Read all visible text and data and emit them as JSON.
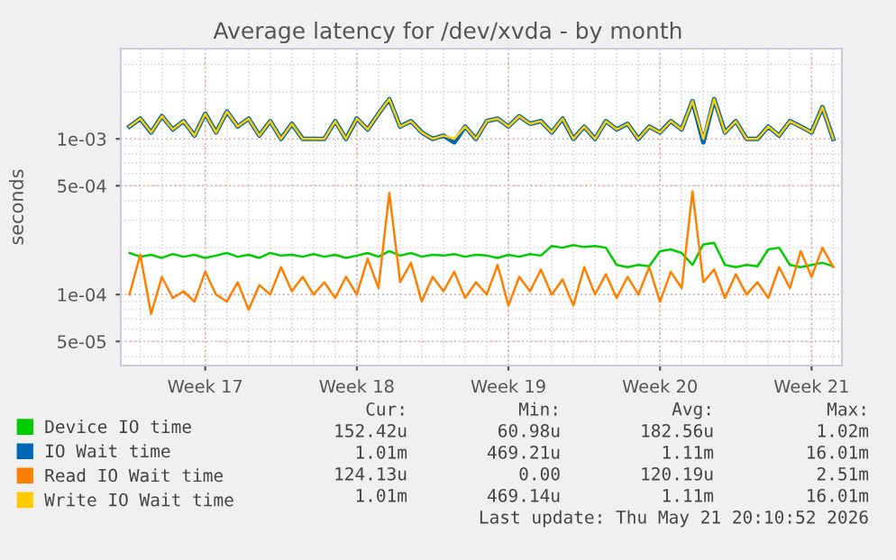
{
  "chart_data": {
    "type": "line",
    "title": "Average latency for /dev/xvda - by month",
    "ylabel": "seconds",
    "categories": [
      null,
      null,
      null,
      null,
      null,
      null,
      null,
      "Week 17",
      null,
      null,
      null,
      null,
      null,
      null,
      null,
      null,
      null,
      null,
      null,
      null,
      null,
      "Week 18",
      null,
      null,
      null,
      null,
      null,
      null,
      null,
      null,
      null,
      null,
      null,
      null,
      null,
      "Week 19",
      null,
      null,
      null,
      null,
      null,
      null,
      null,
      null,
      null,
      null,
      null,
      null,
      null,
      "Week 20",
      null,
      null,
      null,
      null,
      null,
      null,
      null,
      null,
      null,
      null,
      null,
      null,
      null,
      "Week 21",
      null,
      null
    ],
    "series": [
      {
        "name": "Device IO time",
        "color": "#00cc00",
        "values": [
          0.000185,
          0.000175,
          0.00018,
          0.000172,
          0.000182,
          0.000175,
          0.00018,
          0.000172,
          0.000178,
          0.000185,
          0.000175,
          0.00018,
          0.000172,
          0.000185,
          0.000178,
          0.00018,
          0.000175,
          0.000182,
          0.000175,
          0.00018,
          0.000172,
          0.000178,
          0.000185,
          0.000175,
          0.00019,
          0.000178,
          0.000185,
          0.000175,
          0.00018,
          0.000178,
          0.000182,
          0.000175,
          0.00018,
          0.000178,
          0.000172,
          0.00018,
          0.000175,
          0.000182,
          0.000178,
          0.000205,
          0.0002,
          0.000208,
          0.000202,
          0.000205,
          0.0002,
          0.000155,
          0.00015,
          0.000155,
          0.000152,
          0.00019,
          0.000195,
          0.000185,
          0.000155,
          0.00021,
          0.000215,
          0.000155,
          0.00015,
          0.000155,
          0.000152,
          0.000195,
          0.0002,
          0.000155,
          0.00015,
          0.000155,
          0.00016,
          0.000152
        ]
      },
      {
        "name": "IO Wait time",
        "color": "#0066b3",
        "values": [
          0.0012,
          0.00135,
          0.0011,
          0.0014,
          0.00115,
          0.0013,
          0.00105,
          0.00145,
          0.0011,
          0.0015,
          0.0012,
          0.00135,
          0.00105,
          0.0013,
          0.001,
          0.00125,
          0.001,
          0.001,
          0.001,
          0.0013,
          0.001,
          0.00135,
          0.00115,
          0.00145,
          0.0018,
          0.0012,
          0.0013,
          0.0011,
          0.001,
          0.00105,
          0.00095,
          0.0012,
          0.001,
          0.0013,
          0.00135,
          0.0012,
          0.0014,
          0.00125,
          0.0013,
          0.0011,
          0.00135,
          0.001,
          0.0012,
          0.001,
          0.0013,
          0.00115,
          0.00125,
          0.001,
          0.0012,
          0.0011,
          0.0013,
          0.00115,
          0.00175,
          0.00095,
          0.0018,
          0.0011,
          0.0013,
          0.001,
          0.001,
          0.0012,
          0.00105,
          0.0013,
          0.0012,
          0.0011,
          0.0016,
          0.001
        ]
      },
      {
        "name": "Read IO Wait time",
        "color": "#ff8000",
        "values": [
          0.0001,
          0.00018,
          7.5e-05,
          0.00013,
          9.5e-05,
          0.000105,
          9e-05,
          0.00014,
          0.0001,
          9e-05,
          0.00012,
          8e-05,
          0.000115,
          0.0001,
          0.00015,
          0.000105,
          0.00013,
          0.0001,
          0.00012,
          9.5e-05,
          0.00013,
          0.0001,
          0.00017,
          0.00011,
          0.00045,
          0.00012,
          0.00016,
          9e-05,
          0.00013,
          0.000105,
          0.00014,
          9.5e-05,
          0.00012,
          0.0001,
          0.000155,
          8.5e-05,
          0.00013,
          0.000105,
          0.000145,
          0.0001,
          0.000125,
          8.5e-05,
          0.00015,
          0.0001,
          0.000135,
          9.5e-05,
          0.00013,
          0.0001,
          0.00015,
          9e-05,
          0.00014,
          0.00011,
          0.00046,
          0.00012,
          0.000145,
          9.5e-05,
          0.000135,
          0.0001,
          0.00012,
          9.5e-05,
          0.00015,
          0.00011,
          0.00019,
          0.00013,
          0.0002,
          0.00015
        ]
      },
      {
        "name": "Write IO Wait time",
        "color": "#ffcc00",
        "values": [
          0.0012,
          0.00135,
          0.0011,
          0.0014,
          0.00115,
          0.0013,
          0.00105,
          0.00145,
          0.0011,
          0.0015,
          0.0012,
          0.00135,
          0.00105,
          0.0013,
          0.001,
          0.00125,
          0.001,
          0.001,
          0.001,
          0.0013,
          0.001,
          0.00135,
          0.00115,
          0.00145,
          0.0018,
          0.0012,
          0.0013,
          0.0011,
          0.001,
          0.00105,
          0.001,
          0.0012,
          0.001,
          0.0013,
          0.00135,
          0.0012,
          0.0014,
          0.00125,
          0.0013,
          0.0011,
          0.00135,
          0.001,
          0.0012,
          0.001,
          0.0013,
          0.00115,
          0.00125,
          0.001,
          0.0012,
          0.0011,
          0.0013,
          0.00115,
          0.00175,
          0.001,
          0.0018,
          0.0011,
          0.0013,
          0.001,
          0.001,
          0.0012,
          0.00105,
          0.0013,
          0.0012,
          0.0011,
          0.0016,
          0.001
        ]
      }
    ],
    "log": "y",
    "ylim": [
      3.5e-05,
      0.0038
    ],
    "yticks": [
      {
        "value": 5e-05,
        "label": "5e-05"
      },
      {
        "value": 0.0001,
        "label": "1e-04"
      },
      {
        "value": 0.0005,
        "label": "5e-04"
      },
      {
        "value": 0.001,
        "label": "1e-03"
      }
    ],
    "grid": true,
    "legend": "bottom",
    "marker": "none",
    "line_style": "solid",
    "annotations": [
      "Cur:",
      "Min:",
      "Avg:",
      "Max:",
      "152.42u",
      "60.98u",
      "182.56u",
      "1.02m",
      "1.01m",
      "469.21u",
      "1.11m",
      "16.01m",
      "124.13u",
      "0.00",
      "120.19u",
      "2.51m",
      "1.01m",
      "469.14u",
      "1.11m",
      "16.01m",
      "Last update: Thu May 21 20:10:52 2026"
    ]
  }
}
